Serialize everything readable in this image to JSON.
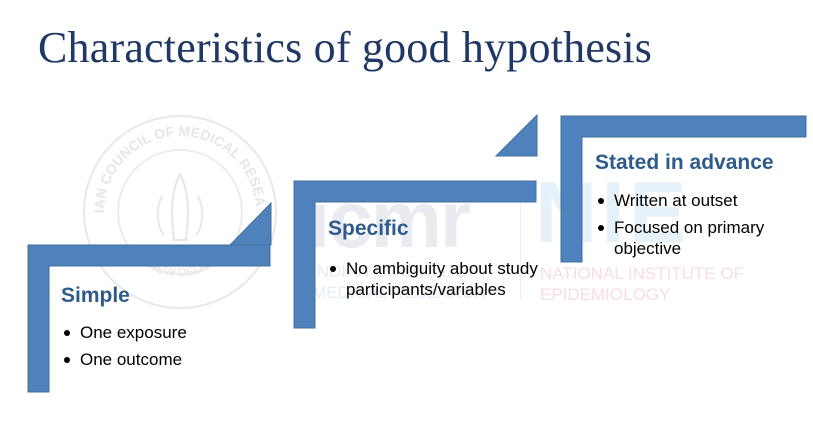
{
  "slide": {
    "title": "Characteristics of good hypothesis"
  },
  "watermark": {
    "logo_text": "icmr",
    "org_line1": "INDIAN COUNCIL OF",
    "org_line2": "MEDICAL RESEARCH",
    "nie_short": "NIE",
    "nie_line1": "NATIONAL INSTITUTE OF",
    "nie_line2": "EPIDEMIOLOGY",
    "seal_city": "NEW DELHI",
    "seal_ring": "INDIAN COUNCIL OF MEDICAL RESEARCH"
  },
  "steps": [
    {
      "heading": "Simple",
      "bullets": [
        "One exposure",
        "One outcome"
      ]
    },
    {
      "heading": "Specific",
      "bullets": [
        "No ambiguity about study participants/variables"
      ]
    },
    {
      "heading": "Stated in advance",
      "bullets": [
        "Written at outset",
        "Focused on primary objective"
      ]
    }
  ],
  "colors": {
    "title": "#1f3864",
    "stair_fill": "#4f81bd",
    "heading": "#2e5c8a"
  }
}
